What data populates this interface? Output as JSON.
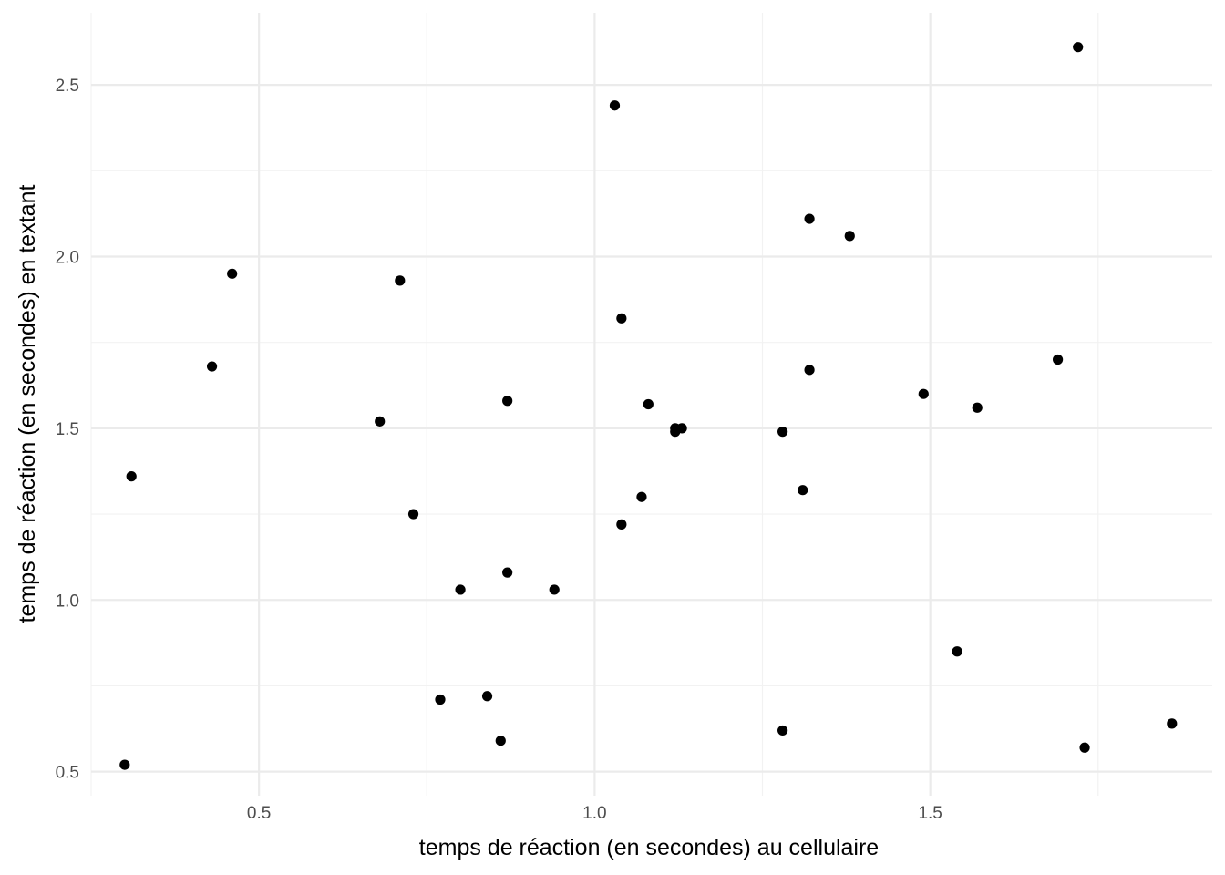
{
  "chart_data": {
    "type": "scatter",
    "xlabel": "temps de réaction (en secondes) au cellulaire",
    "ylabel": "temps de réaction (en secondes) en textant",
    "xlim": [
      0.25,
      1.92
    ],
    "ylim": [
      0.43,
      2.71
    ],
    "x_ticks": [
      0.5,
      1.0,
      1.5
    ],
    "x_tick_labels": [
      "0.5",
      "1.0",
      "1.5"
    ],
    "x_minor_ticks": [
      0.25,
      0.75,
      1.25,
      1.75
    ],
    "y_ticks": [
      0.5,
      1.0,
      1.5,
      2.0,
      2.5
    ],
    "y_tick_labels": [
      "0.5",
      "1.0",
      "1.5",
      "2.0",
      "2.5"
    ],
    "y_minor_ticks": [
      0.75,
      1.25,
      1.75,
      2.25
    ],
    "grid": true,
    "theme": "minimal",
    "point_color": "#000000",
    "points": [
      {
        "x": 0.3,
        "y": 0.52
      },
      {
        "x": 0.31,
        "y": 1.36
      },
      {
        "x": 0.43,
        "y": 1.68
      },
      {
        "x": 0.46,
        "y": 1.95
      },
      {
        "x": 0.68,
        "y": 1.52
      },
      {
        "x": 0.71,
        "y": 1.93
      },
      {
        "x": 0.73,
        "y": 1.25
      },
      {
        "x": 0.77,
        "y": 0.71
      },
      {
        "x": 0.8,
        "y": 1.03
      },
      {
        "x": 0.84,
        "y": 0.72
      },
      {
        "x": 0.86,
        "y": 0.59
      },
      {
        "x": 0.87,
        "y": 1.08
      },
      {
        "x": 0.87,
        "y": 1.58
      },
      {
        "x": 0.94,
        "y": 1.03
      },
      {
        "x": 1.03,
        "y": 2.44
      },
      {
        "x": 1.04,
        "y": 1.82
      },
      {
        "x": 1.04,
        "y": 1.22
      },
      {
        "x": 1.07,
        "y": 1.3
      },
      {
        "x": 1.08,
        "y": 1.57
      },
      {
        "x": 1.12,
        "y": 1.49
      },
      {
        "x": 1.12,
        "y": 1.5
      },
      {
        "x": 1.13,
        "y": 1.5
      },
      {
        "x": 1.28,
        "y": 0.62
      },
      {
        "x": 1.28,
        "y": 1.49
      },
      {
        "x": 1.31,
        "y": 1.32
      },
      {
        "x": 1.32,
        "y": 1.67
      },
      {
        "x": 1.32,
        "y": 2.11
      },
      {
        "x": 1.38,
        "y": 2.06
      },
      {
        "x": 1.49,
        "y": 1.6
      },
      {
        "x": 1.54,
        "y": 0.85
      },
      {
        "x": 1.57,
        "y": 1.56
      },
      {
        "x": 1.69,
        "y": 1.7
      },
      {
        "x": 1.72,
        "y": 2.61
      },
      {
        "x": 1.73,
        "y": 0.57
      },
      {
        "x": 1.86,
        "y": 0.64
      }
    ]
  }
}
